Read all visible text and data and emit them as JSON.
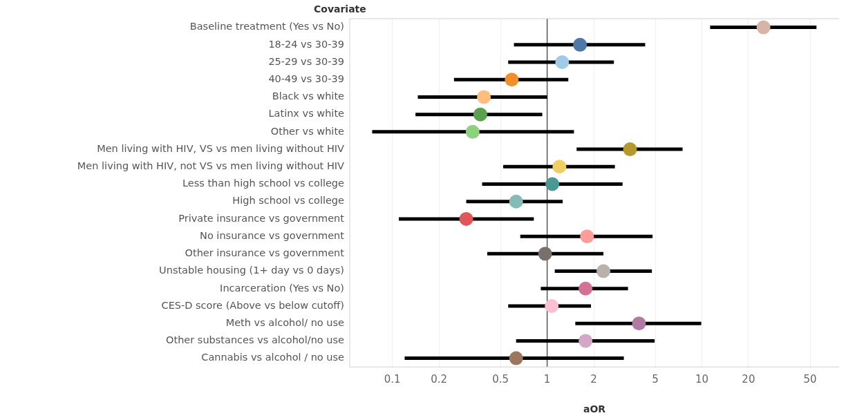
{
  "chart_data": {
    "type": "scatter",
    "orientation": "horizontal",
    "ylabel": "Covariate",
    "xlabel": "aOR",
    "log": "x",
    "grid": "x",
    "marker": "circle",
    "categories": [
      "Baseline treatment (Yes vs No)",
      "18-24 vs 30-39",
      "25-29 vs 30-39",
      "40-49 vs 30-39",
      "Black vs white",
      "Latinx vs white",
      "Other vs white",
      "Men living with HIV, VS vs men living without HIV",
      "Men living with HIV, not VS vs men living without HIV",
      "Less than high school vs college",
      "High school vs college",
      "Private insurance vs government",
      "No insurance vs government",
      "Other insurance vs government",
      "Unstable housing (1+ day vs 0 days)",
      "Incarceration (Yes vs No)",
      "CES-D score (Above vs below cutoff)",
      "Meth vs alcohol/ no use",
      "Other substances vs alcohol/no use",
      "Cannabis vs alcohol / no use"
    ],
    "values": [
      25,
      1.63,
      1.25,
      0.59,
      0.39,
      0.37,
      0.33,
      3.43,
      1.2,
      1.08,
      0.63,
      0.3,
      1.81,
      0.97,
      2.31,
      1.77,
      1.07,
      3.92,
      1.77,
      0.63
    ],
    "errors": [
      [
        11.3,
        55
      ],
      [
        0.61,
        4.3
      ],
      [
        0.56,
        2.7
      ],
      [
        0.25,
        1.37
      ],
      [
        0.146,
        1.0
      ],
      [
        0.141,
        0.93
      ],
      [
        0.074,
        1.49
      ],
      [
        1.55,
        7.5
      ],
      [
        0.52,
        2.74
      ],
      [
        0.38,
        3.07
      ],
      [
        0.3,
        1.26
      ],
      [
        0.11,
        0.82
      ],
      [
        0.67,
        4.8
      ],
      [
        0.41,
        2.31
      ],
      [
        1.12,
        4.75
      ],
      [
        0.91,
        3.33
      ],
      [
        0.56,
        1.92
      ],
      [
        1.52,
        9.9
      ],
      [
        0.63,
        4.95
      ],
      [
        0.12,
        3.13
      ]
    ],
    "colors": [
      "#d7b5a6",
      "#4e79a7",
      "#a0cbe8",
      "#f28e2b",
      "#ffbe7d",
      "#59a14f",
      "#8cd17d",
      "#b6992d",
      "#f1ce63",
      "#499894",
      "#86bcb6",
      "#e15759",
      "#ff9d9a",
      "#79706e",
      "#bab0ac",
      "#d37295",
      "#fabfd2",
      "#b07aa1",
      "#d4a6c8",
      "#9d7660"
    ],
    "xlim": [
      0.053,
      77
    ],
    "xticks": [
      0.1,
      0.2,
      0.5,
      1,
      2,
      5,
      10,
      20,
      50
    ],
    "ref_lines": [
      {
        "axis": "x",
        "value": 1,
        "color": "#555555"
      }
    ]
  }
}
